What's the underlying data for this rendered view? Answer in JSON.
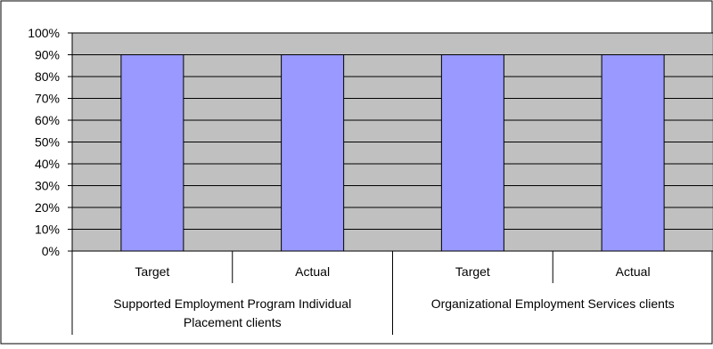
{
  "chart_data": {
    "type": "bar",
    "categories": [
      "Target",
      "Actual",
      "Target",
      "Actual"
    ],
    "groups": [
      "Supported Employment Program Individual Placement clients",
      "Organizational Employment Services clients"
    ],
    "group_label_lines": [
      [
        "Supported Employment Program Individual",
        "Placement clients"
      ],
      [
        "Organizational Employment Services clients"
      ]
    ],
    "values": [
      90,
      90,
      90,
      90
    ],
    "value_unit": "%",
    "ylim": [
      0,
      100
    ],
    "y_ticks": [
      "0%",
      "10%",
      "20%",
      "30%",
      "40%",
      "50%",
      "60%",
      "70%",
      "80%",
      "90%",
      "100%"
    ],
    "title": "",
    "xlabel": "",
    "ylabel": "",
    "grid": true,
    "legend": "none",
    "colors": {
      "bar": "#9999ff",
      "plot_background": "#c0c0c0",
      "gridline": "#000000",
      "axis": "#000000"
    }
  }
}
